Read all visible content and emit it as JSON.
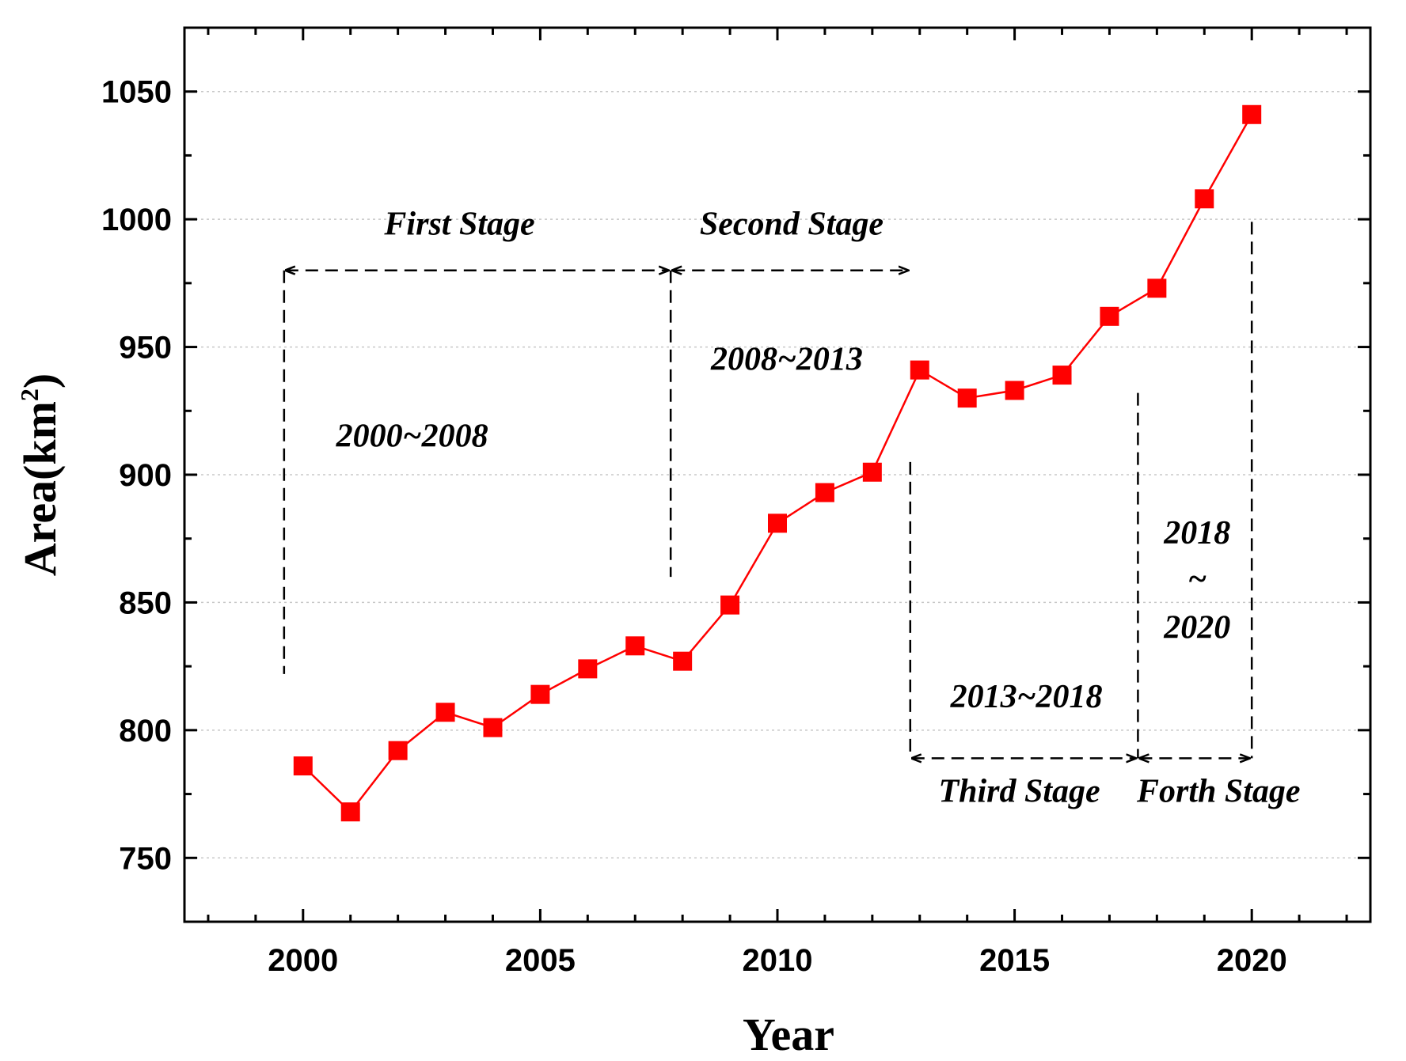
{
  "chart_data": {
    "type": "line",
    "title": "",
    "xlabel": "Year",
    "ylabel": "Area(km",
    "ylabel_sup": "2",
    "ylabel_close": ")",
    "xlim": [
      1997.5,
      2022.5
    ],
    "ylim": [
      725,
      1075
    ],
    "x_ticks": [
      2000,
      2005,
      2010,
      2015,
      2020
    ],
    "x_tick_labels": [
      "2000",
      "2005",
      "2010",
      "2015",
      "2020"
    ],
    "y_ticks": [
      750,
      800,
      850,
      900,
      950,
      1000,
      1050
    ],
    "y_tick_labels": [
      "750",
      "800",
      "850",
      "900",
      "950",
      "1000",
      "1050"
    ],
    "grid": "horizontal dotted",
    "marker_color": "#ff0000",
    "series": [
      {
        "x": [
          2000,
          2001,
          2002,
          2003,
          2004,
          2005,
          2006,
          2007,
          2008,
          2009,
          2010,
          2011,
          2012,
          2013,
          2014,
          2015,
          2016,
          2017,
          2018,
          2019,
          2020
        ],
        "values": [
          786,
          768,
          792,
          807,
          801,
          814,
          824,
          833,
          827,
          849,
          881,
          893,
          901,
          941,
          930,
          933,
          939,
          962,
          973,
          1008,
          1041
        ]
      }
    ],
    "stages": [
      {
        "name": "First Stage",
        "range": "2000~2008",
        "x_start": 1999.6,
        "x_end": 2007.75,
        "y_arrow": 980,
        "y_line_bottom": 822
      },
      {
        "name": "Second Stage",
        "range": "2008~2013",
        "x_start": 2007.75,
        "x_end": 2012.8,
        "y_arrow": 980,
        "y_line_bottom": 860
      },
      {
        "name": "Third Stage",
        "range": "2013~2018",
        "x_start": 2012.8,
        "x_end": 2017.6,
        "y_arrow": 789,
        "y_line_top": 905
      },
      {
        "name": "Forth Stage",
        "range_top": "2018",
        "range_mid": "~",
        "range_bottom": "2020",
        "x_start": 2017.6,
        "x_end": 2020,
        "y_arrow": 789,
        "y_line_top_left": 932,
        "y_line_top_right": 999
      }
    ]
  }
}
